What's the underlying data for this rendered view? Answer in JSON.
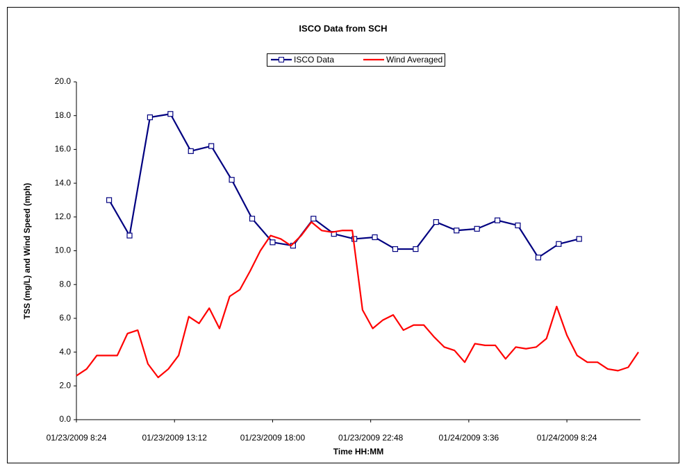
{
  "chart_data": {
    "type": "line",
    "title": "ISCO Data from SCH",
    "xlabel": "Time HH:MM",
    "ylabel": "TSS (mg/L) and Wind Speed (mph)",
    "xlim": [
      "2009-01-23 08:24",
      "2009-01-24 12:00"
    ],
    "xticks": [
      {
        "value": "2009-01-23 08:24",
        "label": "01/23/2009 8:24"
      },
      {
        "value": "2009-01-23 13:12",
        "label": "01/23/2009 13:12"
      },
      {
        "value": "2009-01-23 18:00",
        "label": "01/23/2009 18:00"
      },
      {
        "value": "2009-01-23 22:48",
        "label": "01/23/2009 22:48"
      },
      {
        "value": "2009-01-24 03:36",
        "label": "01/24/2009 3:36"
      },
      {
        "value": "2009-01-24 08:24",
        "label": "01/24/2009 8:24"
      }
    ],
    "ylim": [
      0,
      20
    ],
    "yticks": [
      {
        "value": 0,
        "label": "0.0"
      },
      {
        "value": 2,
        "label": "2.0"
      },
      {
        "value": 4,
        "label": "4.0"
      },
      {
        "value": 6,
        "label": "6.0"
      },
      {
        "value": 8,
        "label": "8.0"
      },
      {
        "value": 10,
        "label": "10.0"
      },
      {
        "value": 12,
        "label": "12.0"
      },
      {
        "value": 14,
        "label": "14.0"
      },
      {
        "value": 16,
        "label": "16.0"
      },
      {
        "value": 18,
        "label": "18.0"
      },
      {
        "value": 20,
        "label": "20.0"
      }
    ],
    "legend": "top",
    "series": [
      {
        "name": "ISCO Data",
        "color": "#000080",
        "marker": "square",
        "x": [
          "2009-01-23 10:00",
          "2009-01-23 11:00",
          "2009-01-23 12:00",
          "2009-01-23 13:00",
          "2009-01-23 14:00",
          "2009-01-23 15:00",
          "2009-01-23 16:00",
          "2009-01-23 17:00",
          "2009-01-23 18:00",
          "2009-01-23 19:00",
          "2009-01-23 20:00",
          "2009-01-23 21:00",
          "2009-01-23 22:00",
          "2009-01-23 23:00",
          "2009-01-24 00:00",
          "2009-01-24 01:00",
          "2009-01-24 02:00",
          "2009-01-24 03:00",
          "2009-01-24 04:00",
          "2009-01-24 05:00",
          "2009-01-24 06:00",
          "2009-01-24 07:00",
          "2009-01-24 08:00",
          "2009-01-24 09:00"
        ],
        "values": [
          13.0,
          10.9,
          17.9,
          18.1,
          15.9,
          16.2,
          14.2,
          11.9,
          10.5,
          10.3,
          11.9,
          11.0,
          10.7,
          10.8,
          10.1,
          10.1,
          11.7,
          11.2,
          11.3,
          11.8,
          11.5,
          9.6,
          10.4,
          10.7
        ]
      },
      {
        "name": "Wind Averaged",
        "color": "#ff0000",
        "x": [
          "2009-01-23 08:24",
          "2009-01-23 08:54",
          "2009-01-23 09:24",
          "2009-01-23 09:54",
          "2009-01-23 10:24",
          "2009-01-23 10:54",
          "2009-01-23 11:24",
          "2009-01-23 11:54",
          "2009-01-23 12:24",
          "2009-01-23 12:54",
          "2009-01-23 13:24",
          "2009-01-23 13:54",
          "2009-01-23 14:24",
          "2009-01-23 14:54",
          "2009-01-23 15:24",
          "2009-01-23 15:54",
          "2009-01-23 16:24",
          "2009-01-23 16:54",
          "2009-01-23 17:24",
          "2009-01-23 17:54",
          "2009-01-23 18:24",
          "2009-01-23 18:54",
          "2009-01-23 19:24",
          "2009-01-23 19:54",
          "2009-01-23 20:24",
          "2009-01-23 20:54",
          "2009-01-23 21:24",
          "2009-01-23 21:54",
          "2009-01-23 22:24",
          "2009-01-23 22:54",
          "2009-01-23 23:24",
          "2009-01-23 23:54",
          "2009-01-24 00:24",
          "2009-01-24 00:54",
          "2009-01-24 01:24",
          "2009-01-24 01:54",
          "2009-01-24 02:24",
          "2009-01-24 02:54",
          "2009-01-24 03:24",
          "2009-01-24 03:54",
          "2009-01-24 04:24",
          "2009-01-24 04:54",
          "2009-01-24 05:24",
          "2009-01-24 05:54",
          "2009-01-24 06:24",
          "2009-01-24 06:54",
          "2009-01-24 07:24",
          "2009-01-24 07:54",
          "2009-01-24 08:24",
          "2009-01-24 08:54",
          "2009-01-24 09:24",
          "2009-01-24 09:54",
          "2009-01-24 10:24",
          "2009-01-24 10:54",
          "2009-01-24 11:24",
          "2009-01-24 11:54"
        ],
        "values": [
          2.6,
          3.0,
          3.8,
          3.8,
          3.8,
          5.1,
          5.3,
          3.3,
          2.5,
          3.0,
          3.8,
          6.1,
          5.7,
          6.6,
          5.4,
          7.3,
          7.7,
          8.8,
          10.0,
          10.9,
          10.7,
          10.3,
          10.9,
          11.7,
          11.2,
          11.1,
          11.2,
          11.2,
          6.5,
          5.4,
          5.9,
          6.2,
          5.3,
          5.6,
          5.6,
          4.9,
          4.3,
          4.1,
          3.4,
          4.5,
          4.4,
          4.4,
          3.6,
          4.3,
          4.2,
          4.3,
          4.8,
          6.7,
          5.0,
          3.8,
          3.4,
          3.4,
          3.0,
          2.9,
          3.1,
          4.0
        ]
      }
    ]
  }
}
